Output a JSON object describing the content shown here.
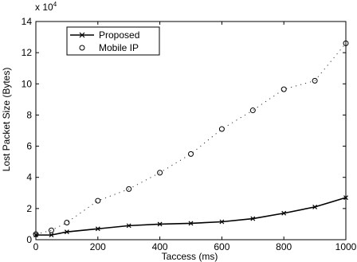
{
  "chart_data": {
    "type": "line",
    "title": "",
    "xlabel": "Taccess (ms)",
    "ylabel": "Lost Packet Size (Bytes)",
    "y_multiplier_base": "x 10",
    "y_multiplier_exp": "4",
    "xlim": [
      0,
      1000
    ],
    "ylim": [
      0,
      14
    ],
    "xticks": [
      "0",
      "200",
      "400",
      "600",
      "800",
      "1000"
    ],
    "yticks": [
      "0",
      "2",
      "4",
      "6",
      "8",
      "10",
      "12",
      "14"
    ],
    "grid": false,
    "legend_position": "top-left",
    "series": [
      {
        "name": "Proposed",
        "style": "solid line with x markers",
        "x": [
          0,
          50,
          100,
          200,
          300,
          400,
          500,
          600,
          700,
          800,
          900,
          1000
        ],
        "y": [
          0.3,
          0.3,
          0.5,
          0.7,
          0.9,
          1.0,
          1.05,
          1.15,
          1.35,
          1.7,
          2.1,
          2.7
        ]
      },
      {
        "name": "Mobile IP",
        "style": "dotted line with circle markers",
        "x": [
          0,
          50,
          100,
          200,
          300,
          400,
          500,
          600,
          700,
          800,
          900,
          1000
        ],
        "y": [
          0.35,
          0.6,
          1.1,
          2.5,
          3.25,
          4.3,
          5.5,
          7.1,
          8.3,
          9.65,
          10.2,
          12.6
        ]
      }
    ]
  }
}
